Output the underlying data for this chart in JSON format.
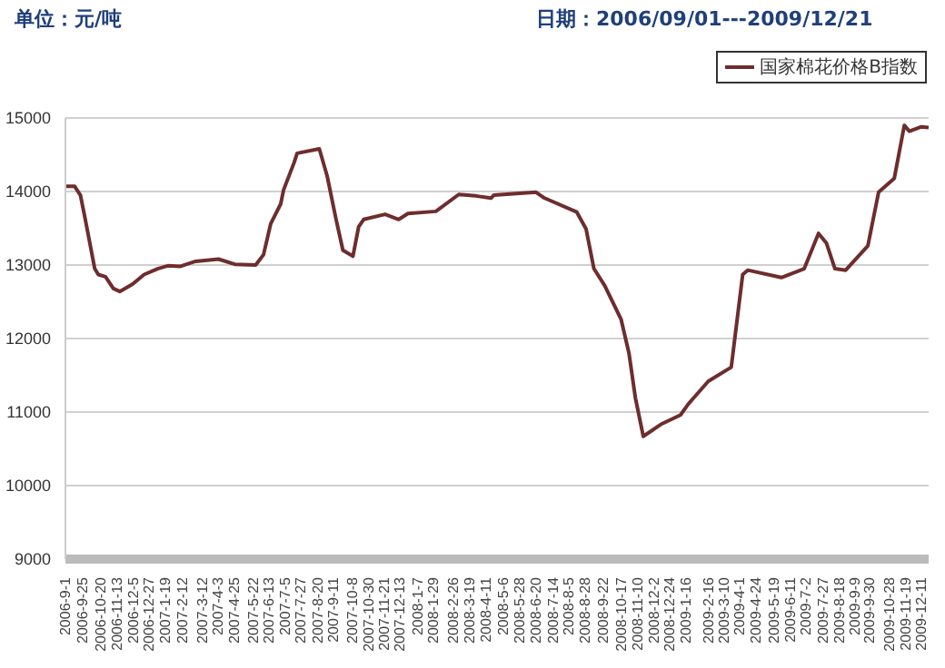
{
  "chart_data": {
    "type": "line",
    "title": "日期：2006/09/01---2009/12/21",
    "ylabel": "单位：元/吨",
    "x": [
      "2006-09-01",
      "2006-09-14",
      "2006-09-22",
      "2006-09-29",
      "2006-10-12",
      "2006-10-17",
      "2006-10-27",
      "2006-11-07",
      "2006-11-16",
      "2006-12-04",
      "2006-12-20",
      "2007-01-08",
      "2007-01-22",
      "2007-02-08",
      "2007-03-02",
      "2007-04-03",
      "2007-04-26",
      "2007-05-25",
      "2007-06-05",
      "2007-06-15",
      "2007-06-29",
      "2007-07-03",
      "2007-07-18",
      "2007-07-22",
      "2007-08-22",
      "2007-09-02",
      "2007-09-14",
      "2007-09-24",
      "2007-10-08",
      "2007-10-16",
      "2007-10-23",
      "2007-11-22",
      "2007-12-11",
      "2007-12-24",
      "2008-02-01",
      "2008-03-04",
      "2008-03-28",
      "2008-04-18",
      "2008-04-22",
      "2008-06-20",
      "2008-07-02",
      "2008-08-16",
      "2008-08-29",
      "2008-09-09",
      "2008-09-24",
      "2008-10-17",
      "2008-10-28",
      "2008-11-06",
      "2008-11-17",
      "2008-12-13",
      "2009-01-08",
      "2009-01-19",
      "2009-02-16",
      "2009-03-20",
      "2009-04-05",
      "2009-04-12",
      "2009-05-29",
      "2009-06-30",
      "2009-07-20",
      "2009-07-31",
      "2009-08-12",
      "2009-08-27",
      "2009-09-27",
      "2009-10-12",
      "2009-11-03",
      "2009-11-17",
      "2009-11-24",
      "2009-12-11",
      "2009-12-21"
    ],
    "series": [
      {
        "name": "国家棉花价格B指数",
        "color": "#6e2d2d",
        "values": [
          14070,
          14070,
          13950,
          13610,
          12950,
          12870,
          12840,
          12680,
          12640,
          12740,
          12870,
          12950,
          12990,
          12980,
          13050,
          13080,
          13010,
          13000,
          13140,
          13560,
          13830,
          14020,
          14400,
          14520,
          14580,
          14210,
          13640,
          13200,
          13120,
          13520,
          13620,
          13690,
          13620,
          13700,
          13730,
          13960,
          13940,
          13910,
          13950,
          13990,
          13910,
          13720,
          13490,
          12950,
          12720,
          12260,
          11800,
          11190,
          10670,
          10840,
          10960,
          11110,
          11420,
          11610,
          12870,
          12930,
          12830,
          12950,
          13430,
          13300,
          12950,
          12930,
          13260,
          13990,
          14180,
          14900,
          14820,
          14880,
          14870
        ]
      }
    ],
    "xlim": [
      "2006-09-01",
      "2009-12-21"
    ],
    "xticks": [
      {
        "value": "2006-09-01",
        "label": "2006-9-1"
      },
      {
        "value": "2006-09-25",
        "label": "2006-9-25"
      },
      {
        "value": "2006-10-20",
        "label": "2006-10-20"
      },
      {
        "value": "2006-11-13",
        "label": "2006-11-13"
      },
      {
        "value": "2006-12-05",
        "label": "2006-12-5"
      },
      {
        "value": "2006-12-27",
        "label": "2006-12-27"
      },
      {
        "value": "2007-01-19",
        "label": "2007-1-19"
      },
      {
        "value": "2007-02-12",
        "label": "2007-2-12"
      },
      {
        "value": "2007-03-12",
        "label": "2007-3-12"
      },
      {
        "value": "2007-04-03",
        "label": "2007-4-3"
      },
      {
        "value": "2007-04-25",
        "label": "2007-4-25"
      },
      {
        "value": "2007-05-22",
        "label": "2007-5-22"
      },
      {
        "value": "2007-06-13",
        "label": "2007-6-13"
      },
      {
        "value": "2007-07-05",
        "label": "2007-7-5"
      },
      {
        "value": "2007-07-27",
        "label": "2007-7-27"
      },
      {
        "value": "2007-08-20",
        "label": "2007-8-20"
      },
      {
        "value": "2007-09-11",
        "label": "2007-9-11"
      },
      {
        "value": "2007-10-08",
        "label": "2007-10-8"
      },
      {
        "value": "2007-10-30",
        "label": "2007-10-30"
      },
      {
        "value": "2007-11-21",
        "label": "2007-11-21"
      },
      {
        "value": "2007-12-13",
        "label": "2007-12-13"
      },
      {
        "value": "2008-01-07",
        "label": "2008-1-7"
      },
      {
        "value": "2008-01-29",
        "label": "2008-1-29"
      },
      {
        "value": "2008-02-26",
        "label": "2008-2-26"
      },
      {
        "value": "2008-03-19",
        "label": "2008-3-19"
      },
      {
        "value": "2008-04-11",
        "label": "2008-4-11"
      },
      {
        "value": "2008-05-06",
        "label": "2008-5-6"
      },
      {
        "value": "2008-05-28",
        "label": "2008-5-28"
      },
      {
        "value": "2008-06-20",
        "label": "2008-6-20"
      },
      {
        "value": "2008-07-14",
        "label": "2008-7-14"
      },
      {
        "value": "2008-08-05",
        "label": "2008-8-5"
      },
      {
        "value": "2008-08-28",
        "label": "2008-8-28"
      },
      {
        "value": "2008-09-22",
        "label": "2008-9-22"
      },
      {
        "value": "2008-10-17",
        "label": "2008-10-17"
      },
      {
        "value": "2008-11-10",
        "label": "2008-11-10"
      },
      {
        "value": "2008-12-02",
        "label": "2008-12-2"
      },
      {
        "value": "2008-12-24",
        "label": "2008-12-24"
      },
      {
        "value": "2009-01-16",
        "label": "2009-1-16"
      },
      {
        "value": "2009-02-16",
        "label": "2009-2-16"
      },
      {
        "value": "2009-03-10",
        "label": "2009-3-10"
      },
      {
        "value": "2009-04-01",
        "label": "2009-4-1"
      },
      {
        "value": "2009-04-24",
        "label": "2009-4-24"
      },
      {
        "value": "2009-05-19",
        "label": "2009-5-19"
      },
      {
        "value": "2009-06-11",
        "label": "2009-6-11"
      },
      {
        "value": "2009-07-02",
        "label": "2009-7-2"
      },
      {
        "value": "2009-07-27",
        "label": "2009-7-27"
      },
      {
        "value": "2009-08-18",
        "label": "2009-8-18"
      },
      {
        "value": "2009-09-09",
        "label": "2009-9-9"
      },
      {
        "value": "2009-09-30",
        "label": "2009-9-30"
      },
      {
        "value": "2009-10-28",
        "label": "2009-10-28"
      },
      {
        "value": "2009-11-19",
        "label": "2009-11-19"
      },
      {
        "value": "2009-12-11",
        "label": "2009-12-11"
      }
    ],
    "ylim": [
      9000,
      15000
    ],
    "yticks": [
      9000,
      10000,
      11000,
      12000,
      13000,
      14000,
      15000
    ],
    "grid": "y",
    "legend": "top right",
    "marker": "none",
    "line_style": "solid"
  }
}
